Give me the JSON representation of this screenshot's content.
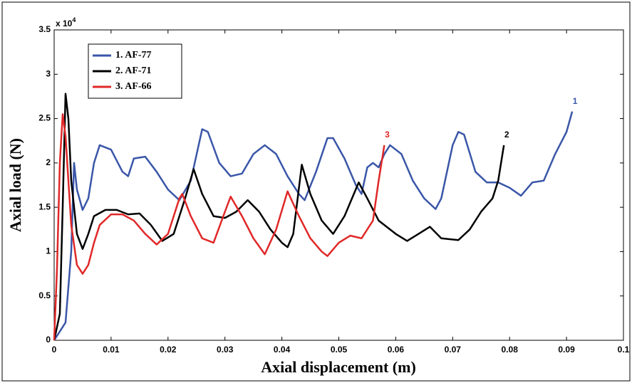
{
  "chart_data": {
    "type": "line",
    "xlabel": "Axial displacement (m)",
    "ylabel": "Axial load (N)",
    "y_multiplier": {
      "base": "x 10",
      "exponent": "4"
    },
    "xlim": [
      0,
      0.1
    ],
    "xticks": [
      0,
      0.01,
      0.02,
      0.03,
      0.04,
      0.05,
      0.06,
      0.07,
      0.08,
      0.09,
      0.1
    ],
    "ylim": [
      0,
      3.5
    ],
    "yticks": [
      0,
      0.5,
      1,
      1.5,
      2,
      2.5,
      3,
      3.5
    ],
    "legend": "upper left",
    "series": [
      {
        "name": "1. AF-77",
        "end_label": "1",
        "color": "#3a56a8",
        "x": [
          0,
          0.002,
          0.003,
          0.0035,
          0.004,
          0.005,
          0.006,
          0.007,
          0.008,
          0.01,
          0.012,
          0.013,
          0.014,
          0.016,
          0.018,
          0.02,
          0.022,
          0.024,
          0.026,
          0.027,
          0.029,
          0.031,
          0.033,
          0.035,
          0.037,
          0.039,
          0.041,
          0.043,
          0.044,
          0.046,
          0.048,
          0.049,
          0.051,
          0.053,
          0.054,
          0.055,
          0.056,
          0.057,
          0.058,
          0.059,
          0.061,
          0.063,
          0.065,
          0.067,
          0.068,
          0.07,
          0.071,
          0.072,
          0.074,
          0.076,
          0.078,
          0.08,
          0.082,
          0.084,
          0.086,
          0.088,
          0.09,
          0.091
        ],
        "values": [
          0,
          0.2,
          1.0,
          2.0,
          1.7,
          1.47,
          1.6,
          2.0,
          2.2,
          2.15,
          1.9,
          1.85,
          2.05,
          2.07,
          1.9,
          1.7,
          1.58,
          1.8,
          2.38,
          2.35,
          2.0,
          1.85,
          1.88,
          2.1,
          2.2,
          2.1,
          1.85,
          1.65,
          1.58,
          1.9,
          2.28,
          2.28,
          2.05,
          1.75,
          1.65,
          1.95,
          2.0,
          1.95,
          2.1,
          2.2,
          2.1,
          1.8,
          1.6,
          1.48,
          1.6,
          2.2,
          2.35,
          2.32,
          1.9,
          1.78,
          1.78,
          1.72,
          1.63,
          1.78,
          1.8,
          2.1,
          2.35,
          2.58
        ]
      },
      {
        "name": "2. AF-71",
        "end_label": "2",
        "color": "#000000",
        "x": [
          0,
          0.001,
          0.0015,
          0.002,
          0.0025,
          0.003,
          0.004,
          0.005,
          0.006,
          0.007,
          0.009,
          0.011,
          0.013,
          0.015,
          0.017,
          0.019,
          0.021,
          0.023,
          0.0245,
          0.026,
          0.028,
          0.03,
          0.032,
          0.034,
          0.036,
          0.038,
          0.04,
          0.041,
          0.042,
          0.0435,
          0.045,
          0.047,
          0.049,
          0.051,
          0.0535,
          0.055,
          0.057,
          0.06,
          0.062,
          0.064,
          0.066,
          0.068,
          0.071,
          0.073,
          0.075,
          0.077,
          0.078,
          0.079
        ],
        "values": [
          0,
          0.3,
          1.5,
          2.78,
          2.5,
          1.8,
          1.2,
          1.03,
          1.2,
          1.4,
          1.47,
          1.47,
          1.42,
          1.43,
          1.3,
          1.12,
          1.2,
          1.6,
          1.93,
          1.65,
          1.4,
          1.38,
          1.45,
          1.58,
          1.45,
          1.25,
          1.1,
          1.05,
          1.2,
          1.98,
          1.65,
          1.35,
          1.2,
          1.4,
          1.78,
          1.6,
          1.35,
          1.2,
          1.12,
          1.2,
          1.28,
          1.15,
          1.13,
          1.25,
          1.45,
          1.6,
          1.8,
          2.2
        ]
      },
      {
        "name": "3. AF-66",
        "end_label": "3",
        "color": "#e02828",
        "x": [
          0,
          0.0005,
          0.001,
          0.0015,
          0.002,
          0.003,
          0.004,
          0.005,
          0.006,
          0.007,
          0.008,
          0.01,
          0.012,
          0.014,
          0.016,
          0.018,
          0.02,
          0.022,
          0.0225,
          0.024,
          0.026,
          0.028,
          0.03,
          0.031,
          0.033,
          0.035,
          0.037,
          0.039,
          0.041,
          0.043,
          0.045,
          0.047,
          0.048,
          0.05,
          0.052,
          0.054,
          0.056,
          0.057,
          0.058
        ],
        "values": [
          0,
          0.8,
          2.0,
          2.55,
          2.3,
          1.3,
          0.85,
          0.75,
          0.85,
          1.1,
          1.3,
          1.42,
          1.42,
          1.35,
          1.2,
          1.08,
          1.2,
          1.6,
          1.65,
          1.4,
          1.15,
          1.1,
          1.45,
          1.62,
          1.4,
          1.15,
          0.97,
          1.25,
          1.68,
          1.4,
          1.15,
          1.0,
          0.95,
          1.1,
          1.18,
          1.15,
          1.35,
          1.8,
          2.2
        ]
      }
    ]
  }
}
